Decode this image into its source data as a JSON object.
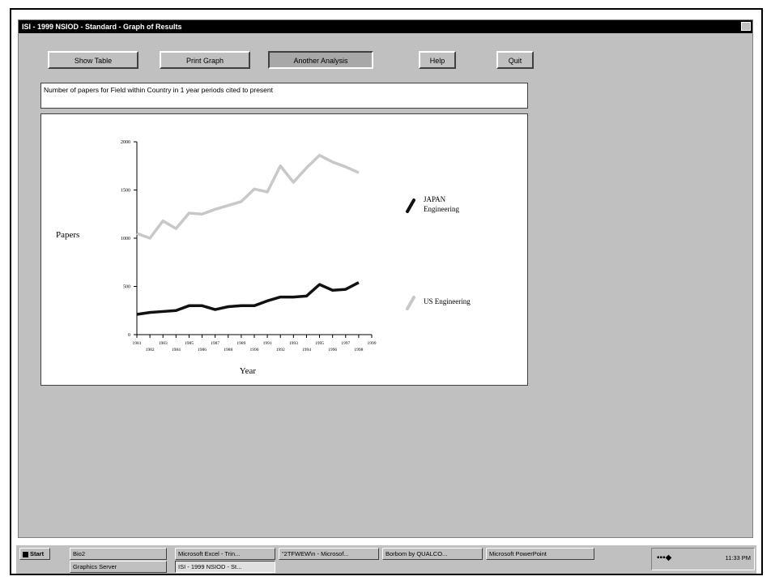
{
  "window": {
    "title": "ISI - 1999 NSIOD - Standard - Graph of Results"
  },
  "toolbar": {
    "show_table": "Show Table",
    "print_graph": "Print Graph",
    "another_analysis": "Another Analysis",
    "help": "Help",
    "quit": "Quit"
  },
  "description": "Number of papers for Field within Country in 1 year periods cited to present",
  "chart_data": {
    "type": "line",
    "xlabel": "Year",
    "ylabel": "Papers",
    "ylim": [
      0,
      2000
    ],
    "yticks": [
      0,
      500,
      1000,
      1500,
      2000
    ],
    "x": [
      1981,
      1982,
      1983,
      1984,
      1985,
      1986,
      1987,
      1988,
      1989,
      1990,
      1991,
      1992,
      1993,
      1994,
      1995,
      1996,
      1997,
      1998
    ],
    "xtick_labels_top": [
      "1981",
      "1983",
      "1985",
      "1987",
      "1989",
      "1991",
      "1993",
      "1995",
      "1997",
      "1999"
    ],
    "xtick_labels_bottom": [
      "1982",
      "1984",
      "1986",
      "1988",
      "1990",
      "1992",
      "1994",
      "1996",
      "1998"
    ],
    "series": [
      {
        "name": "JAPAN Engineering",
        "color": "#111111",
        "values": [
          210,
          230,
          240,
          250,
          300,
          300,
          260,
          290,
          300,
          300,
          350,
          390,
          390,
          400,
          520,
          460,
          470,
          540
        ]
      },
      {
        "name": "US Engineering",
        "color": "#c8c8c8",
        "values": [
          1050,
          1000,
          1180,
          1100,
          1260,
          1250,
          1300,
          1340,
          1380,
          1510,
          1480,
          1750,
          1580,
          1730,
          1860,
          1790,
          1740,
          1680
        ]
      }
    ],
    "legend_placement": "right"
  },
  "taskbar": {
    "start": "Start",
    "items": [
      "Bio2",
      "Microsoft Excel - Trin...",
      "\"2TFWEW\\n - Microsof...",
      "Borbom by QUALCO...",
      "Microsoft PowerPoint",
      "Graphics Server",
      "ISI - 1999 NSIOD - St..."
    ],
    "clock": "11:33 PM"
  }
}
